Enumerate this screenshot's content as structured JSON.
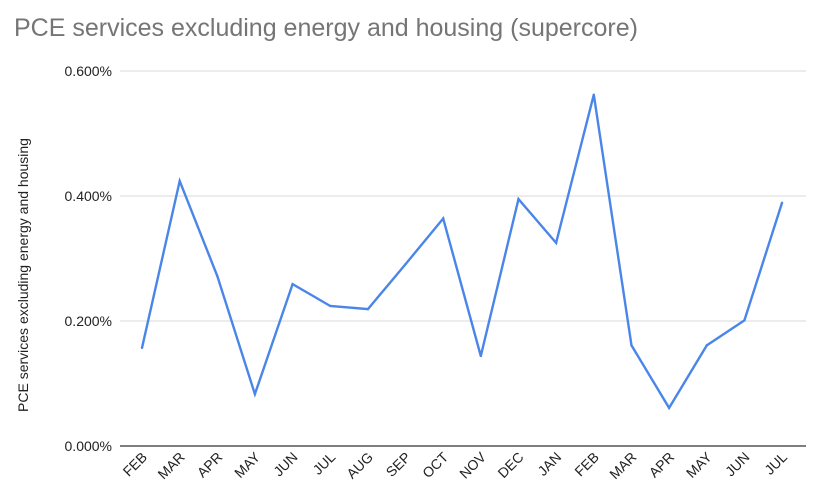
{
  "chart_data": {
    "type": "line",
    "title": "PCE services excluding energy and housing (supercore)",
    "xlabel": "",
    "ylabel": "PCE services excluding energy and housing",
    "ylim": [
      0,
      0.6
    ],
    "y_ticks": [
      {
        "value": 0.0,
        "label": "0.000%"
      },
      {
        "value": 0.2,
        "label": "0.200%"
      },
      {
        "value": 0.4,
        "label": "0.400%"
      },
      {
        "value": 0.6,
        "label": "0.600%"
      }
    ],
    "grid": true,
    "categories": [
      "FEB",
      "MAR",
      "APR",
      "MAY",
      "JUN",
      "JUL",
      "AUG",
      "SEP",
      "OCT",
      "NOV",
      "DEC",
      "JAN",
      "FEB",
      "MAR",
      "APR",
      "MAY",
      "JUN",
      "JUL"
    ],
    "series": [
      {
        "name": "PCE services excluding energy and housing",
        "color": "#4a86e8",
        "values": [
          0.157,
          0.424,
          0.272,
          0.083,
          0.259,
          0.224,
          0.219,
          0.291,
          0.364,
          0.144,
          0.395,
          0.325,
          0.562,
          0.161,
          0.061,
          0.161,
          0.201,
          0.389
        ]
      }
    ]
  }
}
